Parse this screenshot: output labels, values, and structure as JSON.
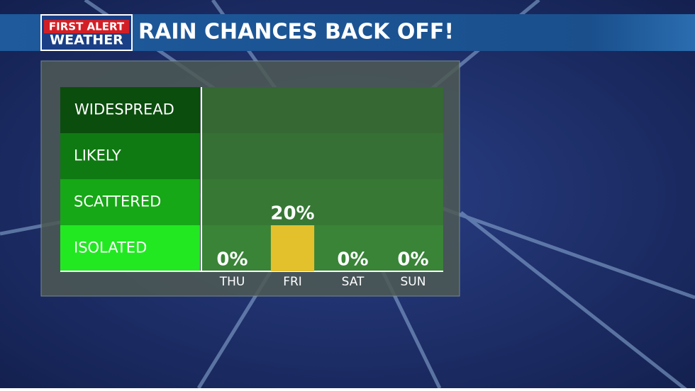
{
  "header": {
    "logo_top": "FIRST ALERT",
    "logo_bottom": "WEATHER",
    "title": "RAIN CHANCES BACK OFF!"
  },
  "chart_data": {
    "type": "bar",
    "categories": [
      "THU",
      "FRI",
      "SAT",
      "SUN"
    ],
    "values": [
      0,
      20,
      0,
      0
    ],
    "value_labels": [
      "0%",
      "20%",
      "0%",
      "0%"
    ],
    "color": "#e2c12c",
    "ylim": [
      0,
      80
    ],
    "levels": [
      "ISOLATED",
      "SCATTERED",
      "LIKELY",
      "WIDESPREAD"
    ],
    "level_colors": [
      "#22e822",
      "#16a816",
      "#0f7a12",
      "#0a4d0c"
    ]
  }
}
